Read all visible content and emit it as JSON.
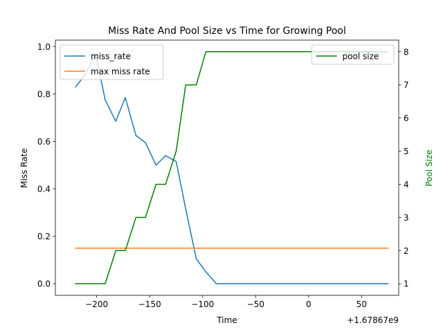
{
  "chart_data": {
    "type": "line",
    "title": "Miss Rate And Pool Size vs Time for Growing Pool",
    "xlabel": "Time",
    "x_offset_label": "+1.67867e9",
    "xlim": [
      -239,
      85
    ],
    "xticks": [
      -200,
      -150,
      -100,
      -50,
      0,
      50
    ],
    "xtick_labels": [
      "−200",
      "−150",
      "−100",
      "−50",
      "0",
      "50"
    ],
    "ylabel_left": "Miss Rate",
    "ylim_left": [
      -0.049,
      1.027
    ],
    "yticks_left": [
      0.0,
      0.2,
      0.4,
      0.6,
      0.8,
      1.0
    ],
    "ytick_labels_left": [
      "0.0",
      "0.2",
      "0.4",
      "0.6",
      "0.8",
      "1.0"
    ],
    "ylabel_right": "Pool Size",
    "ylabel_right_color": "#008000",
    "ylim_right": [
      0.65,
      8.35
    ],
    "yticks_right": [
      1,
      2,
      3,
      4,
      5,
      6,
      7,
      8
    ],
    "ytick_labels_right": [
      "1",
      "2",
      "3",
      "4",
      "5",
      "6",
      "7",
      "8"
    ],
    "left_series": [
      {
        "name": "miss_rate",
        "color": "#1f77b4",
        "x": [
          -220,
          -211,
          -201,
          -192,
          -182,
          -173,
          -163,
          -154,
          -144,
          -135,
          -125,
          -116,
          -106,
          -97,
          -87,
          -78,
          -68,
          -59,
          -49,
          -40,
          -30,
          -21,
          -11,
          -2,
          8,
          17,
          27,
          36,
          46,
          55,
          65,
          75
        ],
        "y": [
          0.83,
          0.88,
          0.97,
          0.775,
          0.685,
          0.785,
          0.625,
          0.595,
          0.5,
          0.54,
          0.515,
          0.315,
          0.105,
          0.05,
          0.0,
          0.0,
          0.0,
          0.0,
          0.0,
          0.0,
          0.0,
          0.0,
          0.0,
          0.0,
          0.0,
          0.0,
          0.0,
          0.0,
          0.0,
          0.0,
          0.0,
          0.0
        ]
      },
      {
        "name": "max miss rate",
        "color": "#ff7f0e",
        "x": [
          -220,
          75
        ],
        "y": [
          0.15,
          0.15
        ]
      }
    ],
    "right_series": [
      {
        "name": "pool size",
        "color": "#008000",
        "x": [
          -220,
          -211,
          -201,
          -192,
          -182,
          -173,
          -163,
          -154,
          -144,
          -135,
          -125,
          -116,
          -106,
          -97,
          -87,
          -78,
          -68,
          -59,
          -49,
          -40,
          -30,
          -21,
          -11,
          -2,
          8,
          17,
          27,
          36,
          46,
          55,
          65,
          75
        ],
        "y": [
          1,
          1,
          1,
          1,
          2,
          2,
          3,
          3,
          4,
          4,
          5,
          7,
          7,
          8,
          8,
          8,
          8,
          8,
          8,
          8,
          8,
          8,
          8,
          8,
          8,
          8,
          8,
          8,
          8,
          8,
          8,
          8
        ]
      }
    ],
    "legend_left_position": "upper left",
    "legend_right_position": "upper right",
    "grid": false
  }
}
